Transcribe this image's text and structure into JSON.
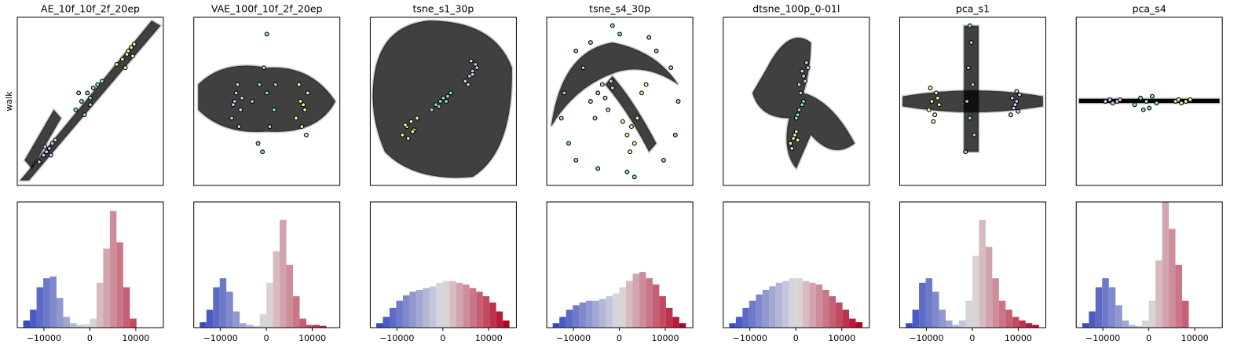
{
  "chart_data": [
    {
      "type": "scatter",
      "title": "AE_10f_10f_2f_20ep",
      "ylabel": "walk",
      "xlim": [
        0,
        100
      ],
      "ylim": [
        0,
        100
      ],
      "series": [
        {
          "color": "#d4c9f1",
          "x": [
            15,
            18,
            20,
            22,
            24,
            26,
            19,
            23
          ],
          "y": [
            14,
            18,
            20,
            22,
            25,
            27,
            23,
            18
          ]
        },
        {
          "color": "#8ee0c6",
          "x": [
            40,
            44,
            48,
            50,
            52,
            55,
            46,
            58,
            42,
            50
          ],
          "y": [
            45,
            50,
            55,
            52,
            58,
            60,
            42,
            62,
            55,
            48
          ]
        },
        {
          "color": "#f6f1a3",
          "x": [
            68,
            72,
            75,
            76,
            78,
            80,
            74,
            79
          ],
          "y": [
            72,
            75,
            78,
            80,
            82,
            84,
            70,
            77
          ]
        }
      ]
    },
    {
      "type": "scatter",
      "title": "VAE_100f_10f_2f_20ep",
      "xlim": [
        0,
        100
      ],
      "ylim": [
        0,
        100
      ],
      "series": [
        {
          "color": "#d4c9f1",
          "x": [
            26,
            28,
            30,
            32,
            29,
            31,
            27,
            33
          ],
          "y": [
            40,
            50,
            60,
            45,
            55,
            35,
            48,
            52
          ]
        },
        {
          "color": "#8ee0c6",
          "x": [
            40,
            45,
            50,
            55,
            48,
            52,
            44,
            56,
            50,
            47
          ],
          "y": [
            50,
            60,
            55,
            45,
            70,
            35,
            25,
            60,
            90,
            20
          ]
        },
        {
          "color": "#f6f1a3",
          "x": [
            70,
            73,
            76,
            78,
            74,
            72,
            77,
            75
          ],
          "y": [
            40,
            50,
            45,
            55,
            35,
            60,
            30,
            48
          ]
        }
      ]
    },
    {
      "type": "scatter",
      "title": "tsne_s1_30p",
      "xlim": [
        0,
        100
      ],
      "ylim": [
        0,
        100
      ],
      "series": [
        {
          "color": "#f6f1a3",
          "x": [
            22,
            25,
            28,
            30,
            26,
            24,
            32,
            29
          ],
          "y": [
            30,
            35,
            38,
            33,
            28,
            36,
            40,
            32
          ]
        },
        {
          "color": "#8ee0c6",
          "x": [
            42,
            45,
            48,
            50,
            52,
            55,
            47,
            53
          ],
          "y": [
            45,
            48,
            50,
            52,
            50,
            55,
            47,
            53
          ]
        },
        {
          "color": "#d4c9f1",
          "x": [
            65,
            68,
            70,
            72,
            70,
            67,
            73,
            69
          ],
          "y": [
            62,
            65,
            68,
            72,
            66,
            60,
            70,
            74
          ]
        }
      ]
    },
    {
      "type": "scatter",
      "title": "tsne_s4_30p",
      "xlim": [
        0,
        100
      ],
      "ylim": [
        0,
        100
      ],
      "series": [
        {
          "color": "#8ee0c6",
          "x": [
            10,
            15,
            20,
            25,
            30,
            35,
            50,
            60,
            70,
            80,
            85,
            90,
            88,
            75,
            45,
            55,
            20,
            12
          ],
          "y": [
            40,
            25,
            15,
            70,
            85,
            10,
            90,
            5,
            88,
            15,
            70,
            50,
            30,
            80,
            95,
            8,
            80,
            55
          ]
        },
        {
          "color": "#d4c9f1",
          "x": [
            30,
            35,
            38,
            40,
            42,
            45,
            33,
            44
          ],
          "y": [
            50,
            55,
            60,
            52,
            45,
            58,
            40,
            62
          ]
        },
        {
          "color": "#f6f1a3",
          "x": [
            55,
            58,
            60,
            52,
            57,
            62,
            68,
            65
          ],
          "y": [
            30,
            35,
            25,
            38,
            20,
            40,
            60,
            55
          ]
        }
      ]
    },
    {
      "type": "scatter",
      "title": "dtsne_100p_0-01l",
      "xlim": [
        0,
        100
      ],
      "ylim": [
        0,
        100
      ],
      "series": [
        {
          "color": "#d4c9f1",
          "x": [
            52,
            55,
            58,
            56,
            54,
            57
          ],
          "y": [
            60,
            65,
            70,
            62,
            68,
            73
          ]
        },
        {
          "color": "#8ee0c6",
          "x": [
            50,
            52,
            55,
            53,
            51,
            54
          ],
          "y": [
            40,
            45,
            50,
            55,
            42,
            48
          ]
        },
        {
          "color": "#f6f1a3",
          "x": [
            46,
            48,
            50,
            49,
            47,
            51
          ],
          "y": [
            25,
            28,
            32,
            30,
            22,
            27
          ]
        }
      ]
    },
    {
      "type": "scatter",
      "title": "pca_s1",
      "xlim": [
        0,
        100
      ],
      "ylim": [
        0,
        100
      ],
      "series": [
        {
          "color": "#f6f1a3",
          "x": [
            20,
            22,
            25,
            27,
            24,
            21,
            26,
            23
          ],
          "y": [
            45,
            50,
            55,
            48,
            42,
            58,
            52,
            38
          ]
        },
        {
          "color": "#8ee0c6",
          "x": [
            45,
            48,
            50,
            47,
            49,
            46,
            51,
            48
          ],
          "y": [
            20,
            40,
            60,
            70,
            85,
            50,
            30,
            95
          ]
        },
        {
          "color": "#d4c9f1",
          "x": [
            76,
            78,
            80,
            82,
            79,
            81,
            77,
            80
          ],
          "y": [
            42,
            46,
            50,
            54,
            48,
            44,
            52,
            56
          ]
        }
      ]
    },
    {
      "type": "scatter",
      "title": "pca_s4",
      "xlim": [
        0,
        100
      ],
      "ylim": [
        0,
        100
      ],
      "series": [
        {
          "color": "#d4c9f1",
          "x": [
            20,
            23,
            25,
            28,
            30
          ],
          "y": [
            50,
            51,
            49,
            50,
            51
          ]
        },
        {
          "color": "#8ee0c6",
          "x": [
            40,
            44,
            48,
            50,
            52,
            55,
            46
          ],
          "y": [
            48,
            52,
            50,
            46,
            53,
            49,
            45
          ]
        },
        {
          "color": "#f6f1a3",
          "x": [
            68,
            70,
            72,
            75,
            78
          ],
          "y": [
            50,
            51,
            49,
            50,
            51
          ]
        }
      ]
    },
    {
      "type": "histogram",
      "xlim": [
        -15800,
        16000
      ],
      "ylim": [
        0,
        140
      ],
      "xticks": [
        {
          "value": -10000,
          "label": "−10000"
        },
        0,
        10000
      ],
      "colormap": [
        "#3b4cc0",
        "#dddddd",
        "#b40426"
      ],
      "bins": [
        -14500,
        -13050,
        -11600,
        -10150,
        -8700,
        -7250,
        -5800,
        -4350,
        -2900,
        -1450,
        0,
        1450,
        2900,
        4350,
        5800,
        7250,
        8700,
        10150,
        11600,
        13050,
        14500
      ],
      "counts": [
        8,
        20,
        45,
        55,
        57,
        33,
        12,
        5,
        3,
        4,
        10,
        50,
        88,
        130,
        95,
        45,
        10,
        0,
        0,
        0
      ]
    },
    {
      "type": "histogram",
      "xlim": [
        -15800,
        16000
      ],
      "ylim": [
        0,
        140
      ],
      "xticks": [
        {
          "value": -10000,
          "label": "−10000"
        },
        0,
        10000
      ],
      "colormap": [
        "#3b4cc0",
        "#dddddd",
        "#b40426"
      ],
      "bins": [
        -14500,
        -13050,
        -11600,
        -10150,
        -8700,
        -7250,
        -5800,
        -4350,
        -2900,
        -1450,
        0,
        1450,
        2900,
        4350,
        5800,
        7250,
        8700,
        10150,
        11600,
        13050,
        14500
      ],
      "counts": [
        6,
        20,
        45,
        55,
        40,
        18,
        5,
        3,
        2,
        15,
        50,
        85,
        120,
        70,
        35,
        10,
        3,
        3,
        2,
        0
      ]
    },
    {
      "type": "histogram",
      "xlim": [
        -15800,
        16000
      ],
      "ylim": [
        0,
        140
      ],
      "xticks": [
        {
          "value": -10000,
          "label": "−10000"
        },
        0,
        10000
      ],
      "colormap": [
        "#3b4cc0",
        "#dddddd",
        "#b40426"
      ],
      "bins": [
        -14500,
        -13050,
        -11600,
        -10150,
        -8700,
        -7250,
        -5800,
        -4350,
        -2900,
        -1450,
        0,
        1450,
        2900,
        4350,
        5800,
        7250,
        8700,
        10150,
        11600,
        13050,
        14500
      ],
      "counts": [
        5,
        12,
        22,
        30,
        36,
        40,
        42,
        44,
        46,
        50,
        52,
        52,
        50,
        48,
        44,
        40,
        35,
        28,
        18,
        8
      ]
    },
    {
      "type": "histogram",
      "xlim": [
        -15800,
        16000
      ],
      "ylim": [
        0,
        140
      ],
      "xticks": [
        {
          "value": -10000,
          "label": "−10000"
        },
        0,
        10000
      ],
      "colormap": [
        "#3b4cc0",
        "#dddddd",
        "#b40426"
      ],
      "bins": [
        -14500,
        -13050,
        -11600,
        -10150,
        -8700,
        -7250,
        -5800,
        -4350,
        -2900,
        -1450,
        0,
        1450,
        2900,
        4350,
        5800,
        7250,
        8700,
        10150,
        11600,
        13050,
        14500
      ],
      "counts": [
        5,
        12,
        20,
        25,
        28,
        30,
        30,
        32,
        35,
        38,
        45,
        52,
        60,
        62,
        55,
        48,
        35,
        22,
        12,
        5
      ]
    },
    {
      "type": "histogram",
      "xlim": [
        -15800,
        16000
      ],
      "ylim": [
        0,
        140
      ],
      "xticks": [
        {
          "value": -10000,
          "label": "−10000"
        },
        0,
        10000
      ],
      "colormap": [
        "#3b4cc0",
        "#dddddd",
        "#b40426"
      ],
      "bins": [
        -14500,
        -13050,
        -11600,
        -10150,
        -8700,
        -7250,
        -5800,
        -4350,
        -2900,
        -1450,
        0,
        1450,
        2900,
        4350,
        5800,
        7250,
        8700,
        10150,
        11600,
        13050,
        14500
      ],
      "counts": [
        5,
        12,
        22,
        30,
        37,
        42,
        46,
        50,
        52,
        55,
        55,
        52,
        50,
        48,
        42,
        35,
        28,
        20,
        10,
        6
      ]
    },
    {
      "type": "histogram",
      "xlim": [
        -15800,
        16000
      ],
      "ylim": [
        0,
        140
      ],
      "xticks": [
        {
          "value": -10000,
          "label": "−10000"
        },
        0,
        10000
      ],
      "colormap": [
        "#3b4cc0",
        "#dddddd",
        "#b40426"
      ],
      "bins": [
        -14500,
        -13050,
        -11600,
        -10150,
        -8700,
        -7250,
        -5800,
        -4350,
        -2900,
        -1450,
        0,
        1450,
        2900,
        4350,
        5800,
        7250,
        8700,
        10150,
        11600,
        13050,
        14500
      ],
      "counts": [
        5,
        20,
        50,
        55,
        40,
        20,
        8,
        3,
        8,
        30,
        80,
        120,
        90,
        55,
        30,
        20,
        12,
        8,
        5,
        3
      ]
    },
    {
      "type": "histogram",
      "xlim": [
        -15800,
        16000
      ],
      "ylim": [
        0,
        140
      ],
      "xticks": [
        {
          "value": -10000,
          "label": "−10000"
        },
        0,
        10000
      ],
      "colormap": [
        "#3b4cc0",
        "#dddddd",
        "#b40426"
      ],
      "bins": [
        -14500,
        -13050,
        -11600,
        -10150,
        -8700,
        -7250,
        -5800,
        -4350,
        -2900,
        -1450,
        0,
        1450,
        2900,
        4350,
        5800,
        7250,
        8700,
        10150,
        11600,
        13050,
        14500
      ],
      "counts": [
        5,
        18,
        45,
        55,
        45,
        25,
        8,
        3,
        2,
        8,
        30,
        75,
        140,
        110,
        70,
        30,
        0,
        0,
        0,
        0
      ]
    }
  ]
}
